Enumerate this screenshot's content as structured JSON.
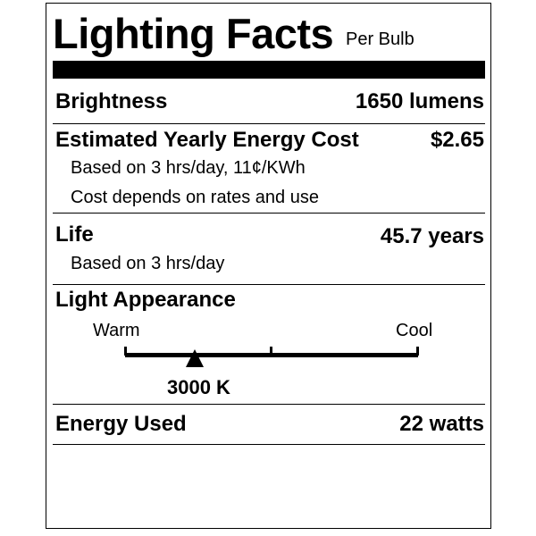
{
  "header": {
    "title": "Lighting Facts",
    "subtitle": "Per Bulb"
  },
  "brightness": {
    "label": "Brightness",
    "value": "1650 lumens"
  },
  "energy_cost": {
    "label": "Estimated Yearly Energy Cost",
    "value": "$2.65",
    "note1": "Based on 3 hrs/day, 11¢/KWh",
    "note2": "Cost depends on rates and use"
  },
  "life": {
    "label": "Life",
    "value": "45.7 years",
    "note": "Based on 3 hrs/day"
  },
  "appearance": {
    "label": "Light Appearance",
    "warm_label": "Warm",
    "cool_label": "Cool",
    "value_label": "3000 K",
    "kelvin": 3000
  },
  "energy_used": {
    "label": "Energy Used",
    "value": "22 watts"
  }
}
